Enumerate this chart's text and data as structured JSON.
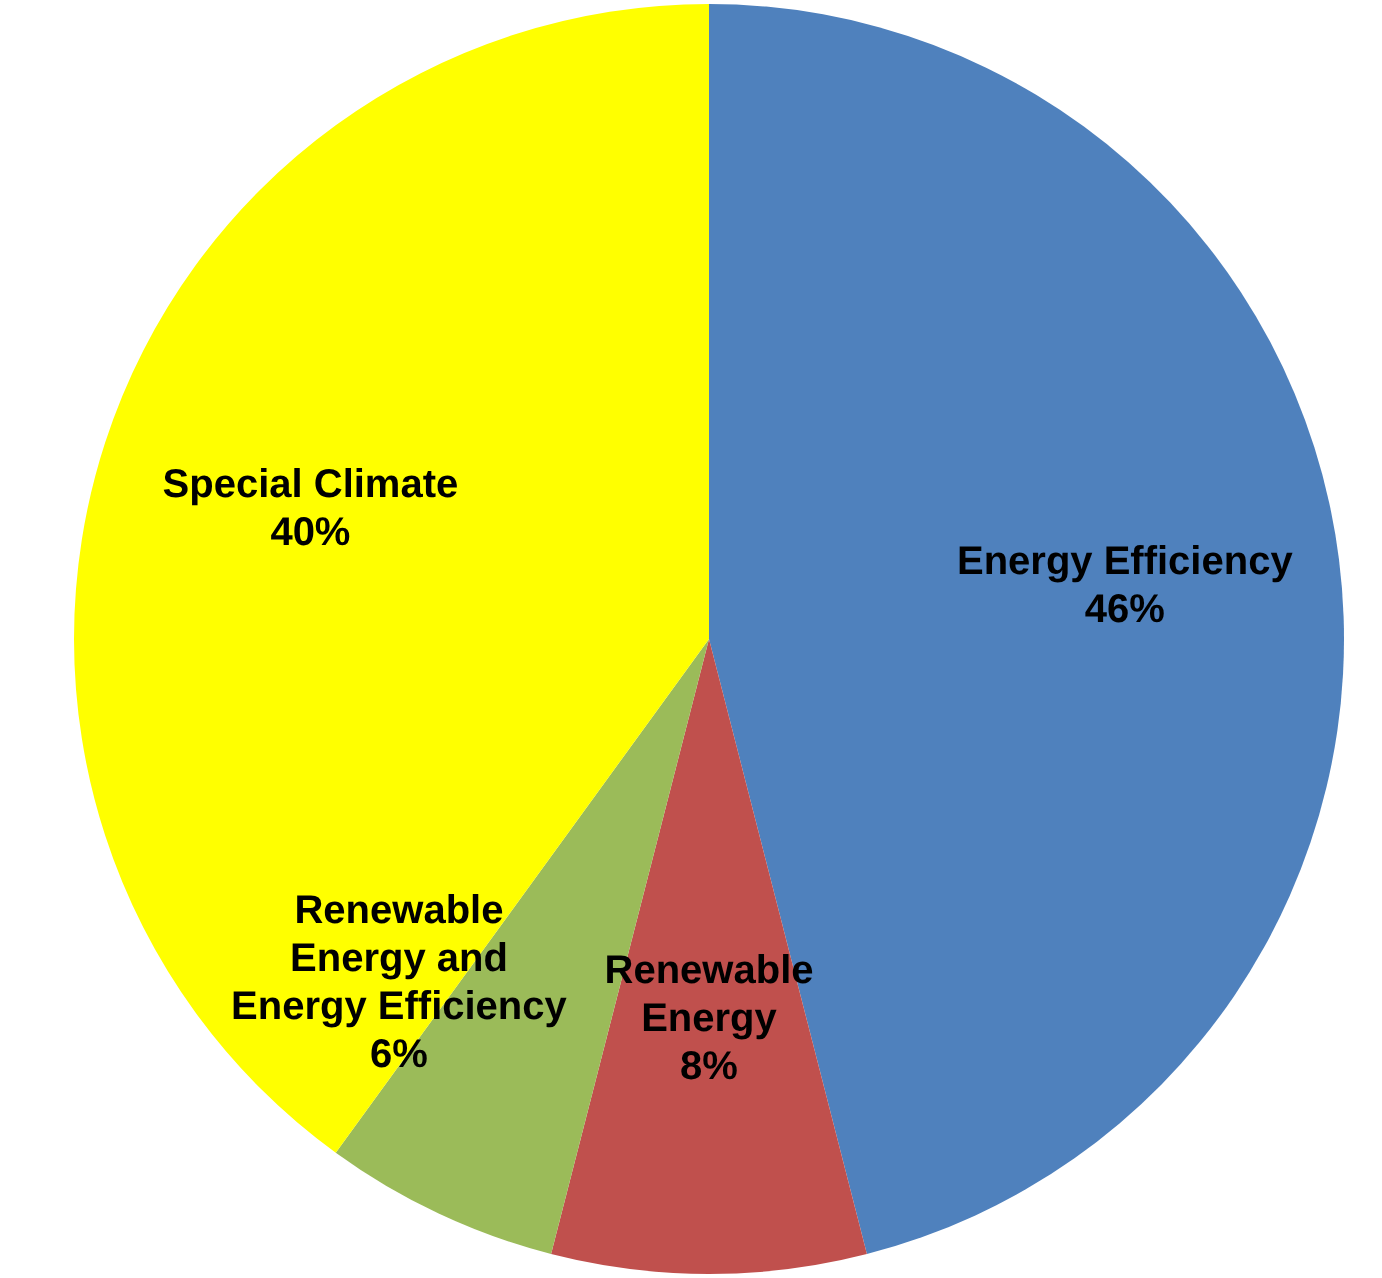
{
  "chart_data": {
    "type": "pie",
    "categories": [
      "Energy Efficiency",
      "Renewable Energy",
      "Renewable Energy and Energy Efficiency",
      "Special Climate"
    ],
    "values": [
      46,
      8,
      6,
      40
    ],
    "colors": [
      "#4f81bd",
      "#c0504d",
      "#9bbb59",
      "#ffff00"
    ],
    "value_labels": [
      "46%",
      "8%",
      "6%",
      "40%"
    ],
    "legend": false
  }
}
